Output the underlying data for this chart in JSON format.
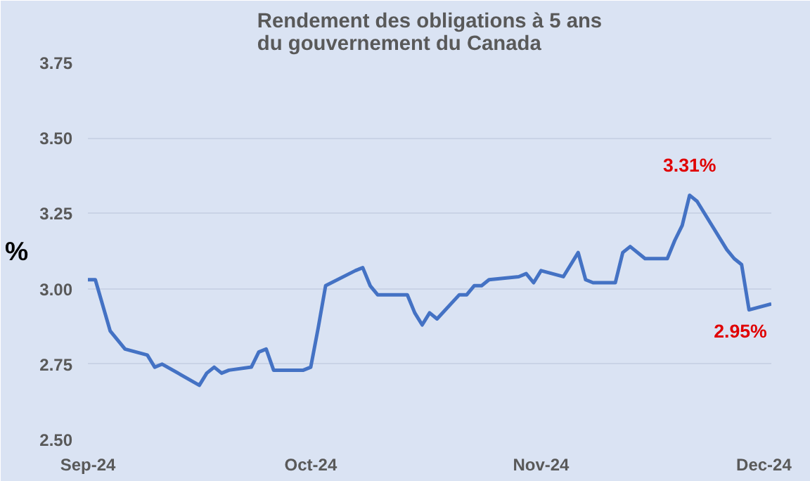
{
  "chart_data": {
    "type": "line",
    "title": "Rendement des obligations à 5 ans\ndu gouvernement du Canada",
    "ylabel": "%",
    "x": [
      "2024-09-01",
      "2024-09-02",
      "2024-09-04",
      "2024-09-06",
      "2024-09-09",
      "2024-09-10",
      "2024-09-11",
      "2024-09-16",
      "2024-09-17",
      "2024-09-18",
      "2024-09-19",
      "2024-09-20",
      "2024-09-23",
      "2024-09-24",
      "2024-09-25",
      "2024-09-26",
      "2024-09-30",
      "2024-10-01",
      "2024-10-02",
      "2024-10-03",
      "2024-10-07",
      "2024-10-08",
      "2024-10-09",
      "2024-10-10",
      "2024-10-14",
      "2024-10-15",
      "2024-10-16",
      "2024-10-17",
      "2024-10-18",
      "2024-10-21",
      "2024-10-22",
      "2024-10-23",
      "2024-10-24",
      "2024-10-25",
      "2024-10-29",
      "2024-10-30",
      "2024-10-31",
      "2024-11-01",
      "2024-11-04",
      "2024-11-06",
      "2024-11-07",
      "2024-11-08",
      "2024-11-11",
      "2024-11-12",
      "2024-11-13",
      "2024-11-15",
      "2024-11-18",
      "2024-11-19",
      "2024-11-20",
      "2024-11-21",
      "2024-11-22",
      "2024-11-26",
      "2024-11-27",
      "2024-11-28",
      "2024-11-29",
      "2024-12-02"
    ],
    "series": [
      {
        "color": "#4472c4",
        "values": [
          3.03,
          3.03,
          2.86,
          2.8,
          2.78,
          2.74,
          2.75,
          2.68,
          2.72,
          2.74,
          2.72,
          2.73,
          2.74,
          2.79,
          2.8,
          2.73,
          2.73,
          2.74,
          2.87,
          3.01,
          3.06,
          3.07,
          3.01,
          2.98,
          2.98,
          2.92,
          2.88,
          2.92,
          2.9,
          2.98,
          2.98,
          3.01,
          3.01,
          3.03,
          3.04,
          3.05,
          3.02,
          3.06,
          3.04,
          3.12,
          3.03,
          3.02,
          3.02,
          3.12,
          3.14,
          3.1,
          3.1,
          3.16,
          3.21,
          3.31,
          3.29,
          3.13,
          3.1,
          3.08,
          2.93,
          2.95
        ]
      }
    ],
    "xlim": [
      "2024-09-01",
      "2024-12-02"
    ],
    "xticks": [
      {
        "value": "2024-09-01",
        "label": "Sep-24"
      },
      {
        "value": "2024-10-01",
        "label": "Oct-24"
      },
      {
        "value": "2024-11-01",
        "label": "Nov-24"
      },
      {
        "value": "2024-12-01",
        "label": "Dec-24"
      }
    ],
    "ylim": [
      2.5,
      3.75
    ],
    "yticks": [
      {
        "value": 2.5,
        "label": "2.50"
      },
      {
        "value": 2.75,
        "label": "2.75"
      },
      {
        "value": 3.0,
        "label": "3.00"
      },
      {
        "value": 3.25,
        "label": "3.25"
      },
      {
        "value": 3.5,
        "label": "3.50"
      },
      {
        "value": 3.75,
        "label": "3.75"
      }
    ],
    "grid": "y",
    "marker": "none",
    "line_style": "solid",
    "annotations": [
      {
        "text": "3.31%",
        "x": "2024-11-21",
        "y": 3.31
      },
      {
        "text": "2.95%",
        "x": "2024-12-02",
        "y": 2.95
      }
    ]
  }
}
